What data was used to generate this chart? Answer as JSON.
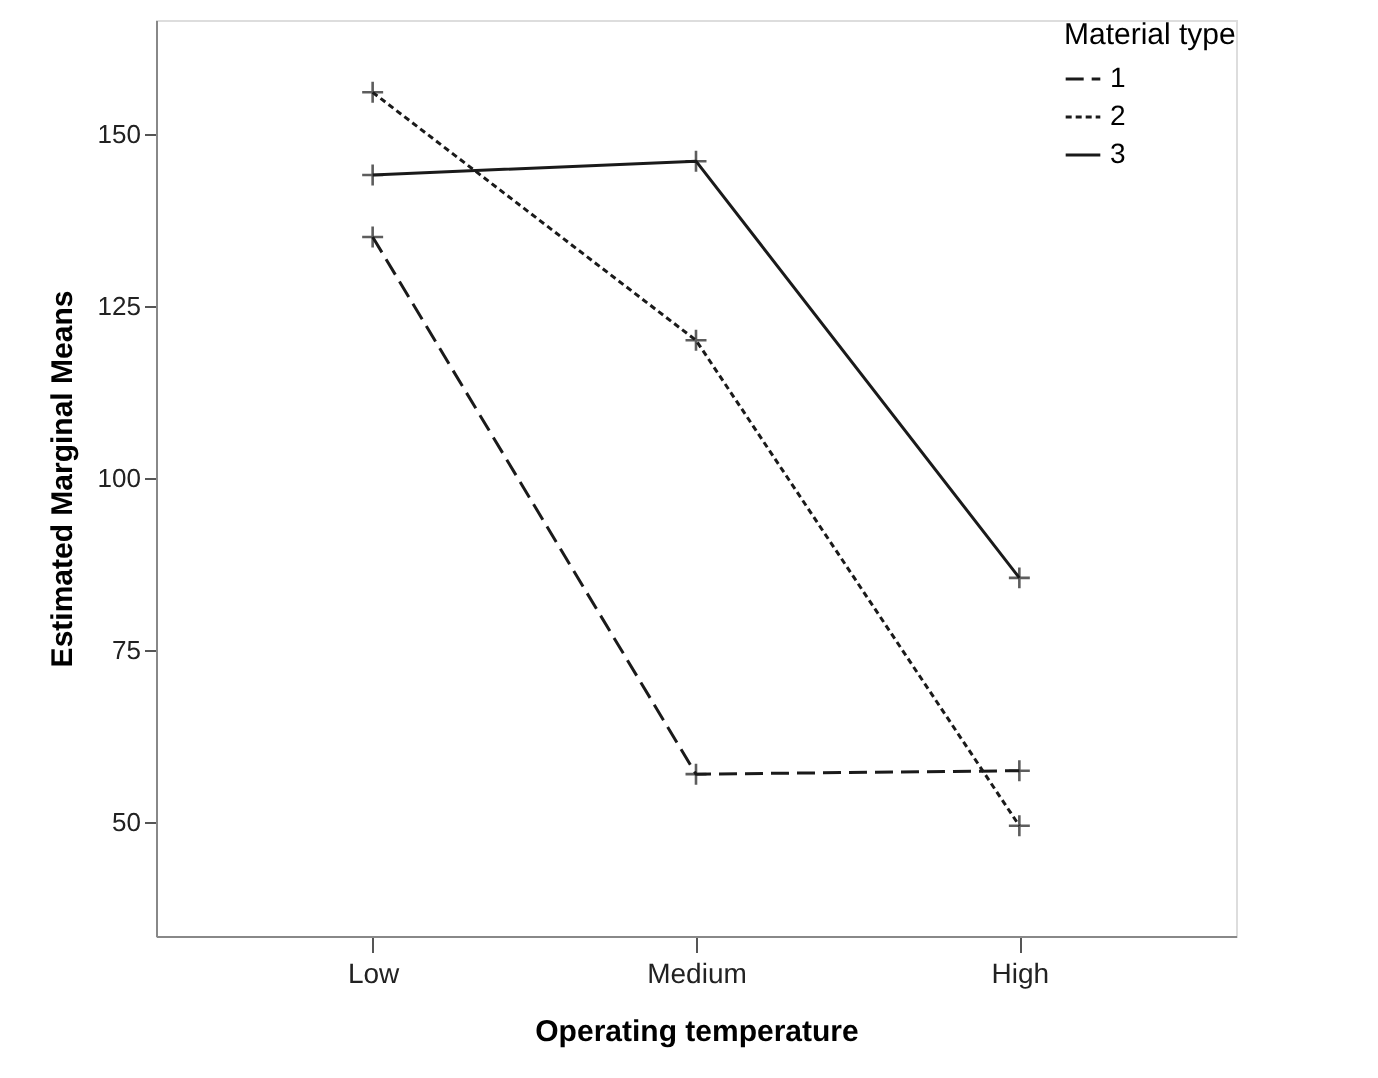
{
  "chart_data": {
    "type": "line",
    "xlabel": "Operating temperature",
    "ylabel": "Estimated Marginal Means",
    "legend_title": "Material type",
    "categories": [
      "Low",
      "Medium",
      "High"
    ],
    "series": [
      {
        "name": "1",
        "color": "#1a1a1a",
        "line_style": "dashed",
        "values": [
          135,
          57,
          57.5
        ]
      },
      {
        "name": "2",
        "color": "#1a1a1a",
        "line_style": "dotted",
        "values": [
          156,
          120,
          49.5
        ]
      },
      {
        "name": "3",
        "color": "#1a1a1a",
        "line_style": "solid",
        "values": [
          144,
          146,
          85.5
        ]
      }
    ],
    "ylim": [
      33.5,
      166.5
    ],
    "yticks": [
      50,
      75,
      100,
      125,
      150
    ],
    "grid": false,
    "legend": "top right",
    "marker": "cross"
  }
}
